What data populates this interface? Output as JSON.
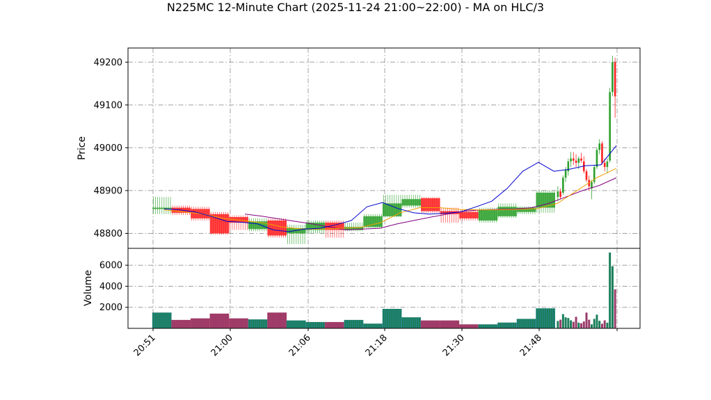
{
  "chart_data": {
    "type": "candlestick",
    "title": "N225MC 12-Minute Chart (2025-11-24 21:00~22:00) - MA on HLC/3",
    "x_tick_labels": [
      "20:51",
      "21:00",
      "21:06",
      "21:18",
      "21:30",
      "21:48"
    ],
    "grid": true,
    "colors": {
      "up": "#2ca02c",
      "down": "#ff2020",
      "ma_short": "#0000cc",
      "ma_mid": "#f0a000",
      "ma_long": "#800080",
      "volume_up": "#1a7f5a",
      "volume_down": "#9a3b6a"
    },
    "price_panel": {
      "ylabel": "Price",
      "ylim": [
        48765,
        49233
      ],
      "yticks": [
        48800,
        48900,
        49000,
        49100,
        49200
      ]
    },
    "volume_panel": {
      "ylabel": "Volume",
      "ylim": [
        0,
        7600
      ],
      "yticks": [
        2000,
        4000,
        6000
      ]
    },
    "segments": [
      {
        "open": 48857,
        "high": 48885,
        "low": 48845,
        "close": 48860,
        "volume": 1500
      },
      {
        "open": 48860,
        "high": 48865,
        "low": 48843,
        "close": 48848,
        "volume": 800
      },
      {
        "open": 48857,
        "high": 48862,
        "low": 48830,
        "close": 48835,
        "volume": 950
      },
      {
        "open": 48845,
        "high": 48850,
        "low": 48797,
        "close": 48800,
        "volume": 1400
      },
      {
        "open": 48838,
        "high": 48842,
        "low": 48808,
        "close": 48825,
        "volume": 950
      },
      {
        "open": 48810,
        "high": 48835,
        "low": 48805,
        "close": 48828,
        "volume": 850
      },
      {
        "open": 48830,
        "high": 48835,
        "low": 48790,
        "close": 48795,
        "volume": 1500
      },
      {
        "open": 48800,
        "high": 48820,
        "low": 48775,
        "close": 48812,
        "volume": 750
      },
      {
        "open": 48808,
        "high": 48830,
        "low": 48800,
        "close": 48825,
        "volume": 600
      },
      {
        "open": 48825,
        "high": 48830,
        "low": 48790,
        "close": 48808,
        "volume": 600
      },
      {
        "open": 48808,
        "high": 48825,
        "low": 48805,
        "close": 48815,
        "volume": 800
      },
      {
        "open": 48815,
        "high": 48845,
        "low": 48812,
        "close": 48840,
        "volume": 450
      },
      {
        "open": 48840,
        "high": 48890,
        "low": 48838,
        "close": 48870,
        "volume": 1850
      },
      {
        "open": 48865,
        "high": 48890,
        "low": 48860,
        "close": 48880,
        "volume": 1050
      },
      {
        "open": 48882,
        "high": 48885,
        "low": 48848,
        "close": 48852,
        "volume": 750
      },
      {
        "open": 48852,
        "high": 48860,
        "low": 48825,
        "close": 48845,
        "volume": 750
      },
      {
        "open": 48850,
        "high": 48855,
        "low": 48830,
        "close": 48835,
        "volume": 380
      },
      {
        "open": 48830,
        "high": 48860,
        "low": 48825,
        "close": 48855,
        "volume": 380
      },
      {
        "open": 48840,
        "high": 48870,
        "low": 48836,
        "close": 48862,
        "volume": 550
      },
      {
        "open": 48850,
        "high": 48863,
        "low": 48845,
        "close": 48860,
        "volume": 900
      },
      {
        "open": 48860,
        "high": 48900,
        "low": 48848,
        "close": 48895,
        "volume": 1900
      }
    ],
    "ticks": [
      {
        "open": 48885,
        "high": 48910,
        "low": 48875,
        "close": 48898,
        "volume": 700
      },
      {
        "open": 48898,
        "high": 48905,
        "low": 48880,
        "close": 48885,
        "volume": 820
      },
      {
        "open": 48895,
        "high": 48935,
        "low": 48890,
        "close": 48930,
        "volume": 1350
      },
      {
        "open": 48930,
        "high": 48955,
        "low": 48920,
        "close": 48948,
        "volume": 1050
      },
      {
        "open": 48945,
        "high": 48975,
        "low": 48935,
        "close": 48968,
        "volume": 980
      },
      {
        "open": 48968,
        "high": 48990,
        "low": 48955,
        "close": 48975,
        "volume": 760
      },
      {
        "open": 48975,
        "high": 48990,
        "low": 48960,
        "close": 48970,
        "volume": 620
      },
      {
        "open": 48970,
        "high": 48985,
        "low": 48955,
        "close": 48965,
        "volume": 1100
      },
      {
        "open": 48965,
        "high": 48980,
        "low": 48950,
        "close": 48975,
        "volume": 540
      },
      {
        "open": 48975,
        "high": 48988,
        "low": 48965,
        "close": 48970,
        "volume": 480
      },
      {
        "open": 48968,
        "high": 48980,
        "low": 48940,
        "close": 48945,
        "volume": 650
      },
      {
        "open": 48945,
        "high": 48950,
        "low": 48920,
        "close": 48925,
        "volume": 1500
      },
      {
        "open": 48925,
        "high": 48935,
        "low": 48900,
        "close": 48910,
        "volume": 820
      },
      {
        "open": 48905,
        "high": 48925,
        "low": 48880,
        "close": 48920,
        "volume": 380
      },
      {
        "open": 48920,
        "high": 48960,
        "low": 48915,
        "close": 48955,
        "volume": 900
      },
      {
        "open": 48955,
        "high": 49000,
        "low": 48950,
        "close": 48995,
        "volume": 1300
      },
      {
        "open": 48995,
        "high": 49020,
        "low": 48985,
        "close": 49010,
        "volume": 720
      },
      {
        "open": 49010,
        "high": 49015,
        "low": 48960,
        "close": 48965,
        "volume": 440
      },
      {
        "open": 48965,
        "high": 48975,
        "low": 48945,
        "close": 48955,
        "volume": 760
      },
      {
        "open": 48955,
        "high": 48975,
        "low": 48940,
        "close": 48968,
        "volume": 540
      },
      {
        "open": 48970,
        "high": 49140,
        "low": 48965,
        "close": 49130,
        "volume": 7200
      },
      {
        "open": 49130,
        "high": 49215,
        "low": 49120,
        "close": 49200,
        "volume": 5900
      },
      {
        "open": 49200,
        "high": 49210,
        "low": 49070,
        "close": 49120,
        "volume": 3700
      }
    ],
    "ma_short": [
      48857,
      48855,
      48850,
      48840,
      48828,
      48826,
      48822,
      48808,
      48804,
      48810,
      48812,
      48820,
      48830,
      48862,
      48872,
      48858,
      48848,
      48845,
      48847,
      48850,
      48862,
      48875,
      48905,
      48945,
      48966,
      48945,
      48950,
      48958,
      48960,
      49005
    ],
    "ma_mid": [
      48855,
      48850,
      48845,
      48835,
      48830,
      48825,
      48815,
      48810,
      48810,
      48812,
      48814,
      48825,
      48848,
      48860,
      48860,
      48856,
      48855,
      48855,
      48856,
      48858,
      48870,
      48900,
      48930,
      48952
    ],
    "ma_long": [
      48845,
      48840,
      48834,
      48828,
      48822,
      48815,
      48808,
      48810,
      48812,
      48822,
      48830,
      48838,
      48845,
      48852,
      48855,
      48856,
      48857,
      48860,
      48870,
      48885,
      48900,
      48912,
      48930
    ]
  }
}
